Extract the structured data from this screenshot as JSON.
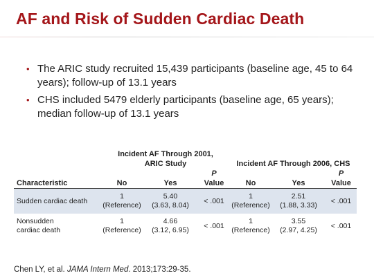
{
  "slide": {
    "title": "AF and Risk of Sudden Cardiac Death"
  },
  "bullets": [
    "The ARIC study recruited 15,439 participants (baseline age, 45 to 64 years); follow-up of 13.1 years",
    "CHS included 5479 elderly participants (baseline age, 65 years); median follow-up of 13.1 years"
  ],
  "table": {
    "group_headers": {
      "aric": "Incident AF Through 2001, ARIC Study",
      "chs": "Incident AF Through 2006, CHS"
    },
    "columns": {
      "characteristic": "Characteristic",
      "no": "No",
      "yes": "Yes",
      "p_italic": "P",
      "p_value": "Value"
    },
    "rows": [
      {
        "characteristic": "Sudden cardiac death",
        "aric_no": "1",
        "aric_no_sub": "(Reference)",
        "aric_yes": "5.40",
        "aric_yes_sub": "(3.63, 8.04)",
        "aric_p": "< .001",
        "chs_no": "1",
        "chs_no_sub": "(Reference)",
        "chs_yes": "2.51",
        "chs_yes_sub": "(1.88, 3.33)",
        "chs_p": "< .001"
      },
      {
        "characteristic": "Nonsudden cardiac death",
        "aric_no": "1",
        "aric_no_sub": "(Reference)",
        "aric_yes": "4.66",
        "aric_yes_sub": "(3.12, 6.95)",
        "aric_p": "< .001",
        "chs_no": "1",
        "chs_no_sub": "(Reference)",
        "chs_yes": "3.55",
        "chs_yes_sub": "(2.97, 4.25)",
        "chs_p": "< .001"
      }
    ]
  },
  "citation": {
    "authors": "Chen LY, et al. ",
    "journal": "JAMA Intern Med",
    "details": ". 2013;173:29-35."
  },
  "colors": {
    "title": "#a4161a",
    "bullet": "#a4161a",
    "row_shade": "#dde4ee"
  }
}
